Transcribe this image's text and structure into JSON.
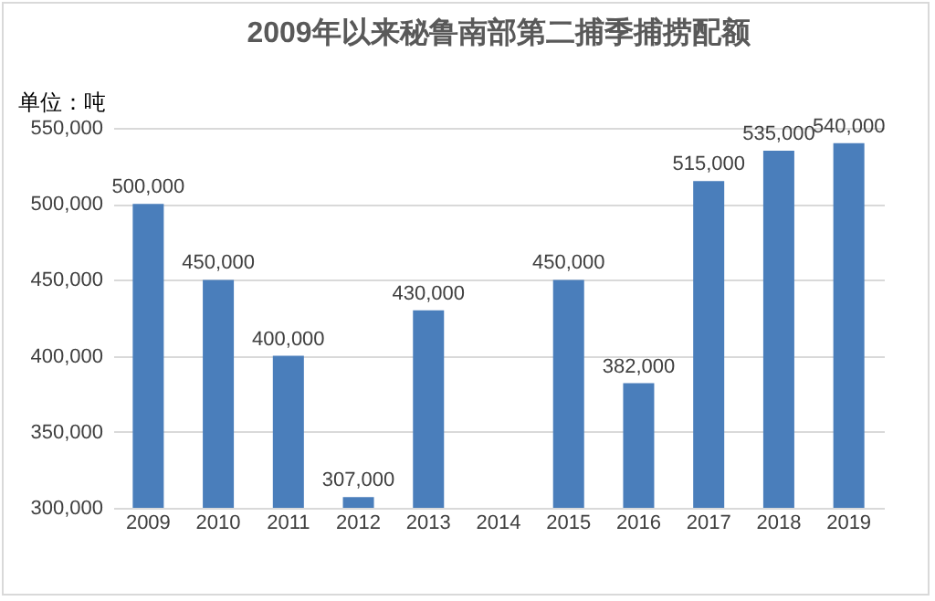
{
  "chart_data": {
    "type": "bar",
    "title": "2009年以来秘鲁南部第二捕季捕捞配额",
    "categories": [
      "2009",
      "2010",
      "2011",
      "2012",
      "2013",
      "2014",
      "2015",
      "2016",
      "2017",
      "2018",
      "2019"
    ],
    "values": [
      500000,
      450000,
      400000,
      307000,
      430000,
      null,
      450000,
      382000,
      515000,
      535000,
      540000
    ],
    "color": "#4a7ebb",
    "value_labels": [
      "500,000",
      "450,000",
      "400,000",
      "307,000",
      "430,000",
      null,
      "450,000",
      "382,000",
      "515,000",
      "535,000",
      "540,000"
    ],
    "ylim": [
      300000,
      550000
    ],
    "yticks": [
      {
        "value": 300000,
        "label": "300,000"
      },
      {
        "value": 350000,
        "label": "350,000"
      },
      {
        "value": 400000,
        "label": "400,000"
      },
      {
        "value": 450000,
        "label": "450,000"
      },
      {
        "value": 500000,
        "label": "500,000"
      },
      {
        "value": 550000,
        "label": "550,000"
      }
    ],
    "grid": "y",
    "annotations": [
      "单位：吨"
    ]
  }
}
